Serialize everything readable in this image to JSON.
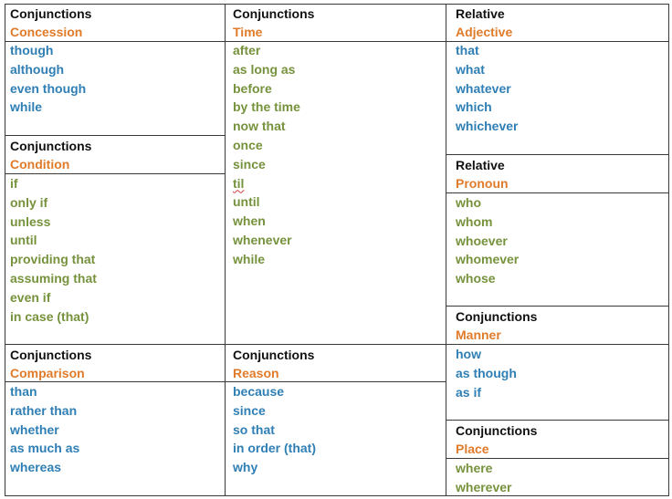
{
  "sections": {
    "concession": {
      "title": "Conjunctions",
      "subtitle": "Concession",
      "items": [
        "though",
        "although",
        "even though",
        "while"
      ]
    },
    "condition": {
      "title": "Conjunctions",
      "subtitle": "Condition",
      "items": [
        "if",
        "only if",
        "unless",
        "until",
        "providing that",
        "assuming that",
        "even if",
        "in case (that)"
      ]
    },
    "comparison": {
      "title": "Conjunctions",
      "subtitle": "Comparison",
      "items": [
        "than",
        "rather than",
        "whether",
        "as much as",
        "whereas"
      ]
    },
    "time": {
      "title": "Conjunctions",
      "subtitle": "Time",
      "items": [
        "after",
        "as long as",
        "before",
        "by the time",
        "now that",
        "once",
        "since",
        "til",
        "until",
        "when",
        "whenever",
        "while"
      ]
    },
    "reason": {
      "title": "Conjunctions",
      "subtitle": "Reason",
      "items": [
        "because",
        "since",
        "so that",
        "in order (that)",
        "why"
      ]
    },
    "relative_adjective": {
      "title": "Relative",
      "subtitle": "Adjective",
      "items": [
        "that",
        "what",
        "whatever",
        "which",
        "whichever"
      ]
    },
    "relative_pronoun": {
      "title": "Relative",
      "subtitle": "Pronoun",
      "items": [
        "who",
        "whom",
        "whoever",
        "whomever",
        "whose"
      ]
    },
    "manner": {
      "title": "Conjunctions",
      "subtitle": "Manner",
      "items": [
        "how",
        "as though",
        "as if"
      ]
    },
    "place": {
      "title": "Conjunctions",
      "subtitle": "Place",
      "items": [
        "where",
        "wherever"
      ]
    }
  },
  "colors": {
    "heading": "#111111",
    "category": "#e07b2a",
    "blue_words": "#2f7fb5",
    "green_words": "#76923c",
    "border": "#3a3a3a"
  }
}
